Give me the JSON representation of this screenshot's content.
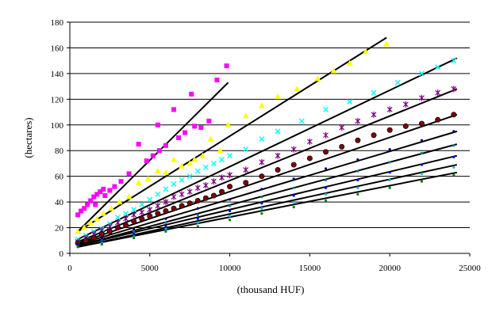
{
  "chart_data": {
    "type": "scatter",
    "title": "",
    "xlabel": "(thousand HUF)",
    "ylabel": "(hectares)",
    "xlim": [
      0,
      25000
    ],
    "ylim": [
      0,
      180
    ],
    "x_ticks": [
      "0",
      "5000",
      "10000",
      "15000",
      "20000",
      "25000"
    ],
    "y_ticks": [
      "0",
      "20",
      "40",
      "60",
      "80",
      "100",
      "120",
      "140",
      "160",
      "180"
    ],
    "grid": "horizontal major gridlines",
    "legend": "none",
    "trend_line_color": "#000000",
    "series": [
      {
        "color": "#ff00ff",
        "marker": "square",
        "points": [
          [
            500,
            30
          ],
          [
            700,
            33
          ],
          [
            900,
            35
          ],
          [
            1100,
            38
          ],
          [
            1300,
            41
          ],
          [
            1500,
            44
          ],
          [
            1700,
            46
          ],
          [
            1900,
            48
          ],
          [
            2100,
            50
          ],
          [
            1600,
            38
          ],
          [
            2200,
            45
          ],
          [
            2500,
            49
          ],
          [
            2800,
            52
          ],
          [
            3200,
            56
          ],
          [
            3700,
            62
          ],
          [
            4300,
            85
          ],
          [
            4800,
            72
          ],
          [
            5200,
            76
          ],
          [
            5600,
            80
          ],
          [
            5500,
            100
          ],
          [
            6000,
            84
          ],
          [
            6500,
            112
          ],
          [
            6800,
            90
          ],
          [
            7200,
            94
          ],
          [
            7600,
            124
          ],
          [
            7800,
            99
          ],
          [
            8200,
            98
          ],
          [
            8700,
            103
          ],
          [
            9200,
            135
          ],
          [
            9800,
            146
          ]
        ],
        "trend": [
          [
            500,
            17
          ],
          [
            9900,
            133
          ]
        ]
      },
      {
        "color": "#ffff00",
        "marker": "triangle",
        "points": [
          [
            500,
            17
          ],
          [
            900,
            20
          ],
          [
            1300,
            24
          ],
          [
            1700,
            27
          ],
          [
            2100,
            31
          ],
          [
            2600,
            35
          ],
          [
            3100,
            40
          ],
          [
            3700,
            44
          ],
          [
            4300,
            55
          ],
          [
            4900,
            58
          ],
          [
            5500,
            64
          ],
          [
            6000,
            63
          ],
          [
            6500,
            73
          ],
          [
            7000,
            68
          ],
          [
            7500,
            70
          ],
          [
            7800,
            73
          ],
          [
            8300,
            76
          ],
          [
            8800,
            89
          ],
          [
            9400,
            80
          ],
          [
            9900,
            100
          ],
          [
            11000,
            107
          ],
          [
            12000,
            115
          ],
          [
            13000,
            122
          ],
          [
            14200,
            128
          ],
          [
            15500,
            136
          ],
          [
            16500,
            142
          ],
          [
            17500,
            148
          ],
          [
            18500,
            157
          ],
          [
            19800,
            163
          ]
        ],
        "trend": [
          [
            500,
            17
          ],
          [
            19800,
            168
          ]
        ]
      },
      {
        "color": "#00ffff",
        "marker": "x",
        "points": [
          [
            500,
            11
          ],
          [
            1000,
            14
          ],
          [
            1500,
            17
          ],
          [
            2000,
            19
          ],
          [
            2500,
            23
          ],
          [
            3000,
            28
          ],
          [
            3500,
            31
          ],
          [
            4000,
            34
          ],
          [
            4500,
            38
          ],
          [
            5000,
            42
          ],
          [
            5500,
            46
          ],
          [
            6000,
            50
          ],
          [
            6500,
            54
          ],
          [
            7000,
            57
          ],
          [
            7500,
            60
          ],
          [
            8000,
            64
          ],
          [
            8500,
            67
          ],
          [
            9000,
            70
          ],
          [
            9500,
            73
          ],
          [
            10000,
            76
          ],
          [
            11000,
            81
          ],
          [
            12000,
            89
          ],
          [
            13000,
            95
          ],
          [
            14500,
            103
          ],
          [
            16000,
            112
          ],
          [
            17500,
            118
          ],
          [
            19000,
            125
          ],
          [
            20500,
            133
          ],
          [
            22000,
            140
          ],
          [
            23000,
            145
          ],
          [
            24000,
            150
          ]
        ],
        "trend": [
          [
            500,
            11
          ],
          [
            24200,
            152
          ]
        ]
      },
      {
        "color": "#800080",
        "marker": "star",
        "points": [
          [
            500,
            9
          ],
          [
            1000,
            12
          ],
          [
            1500,
            15
          ],
          [
            2000,
            18
          ],
          [
            2500,
            21
          ],
          [
            3000,
            24
          ],
          [
            3500,
            27
          ],
          [
            4000,
            30
          ],
          [
            4500,
            32
          ],
          [
            5000,
            34
          ],
          [
            5500,
            37
          ],
          [
            6000,
            40
          ],
          [
            6500,
            44
          ],
          [
            7000,
            46
          ],
          [
            7500,
            48
          ],
          [
            8000,
            51
          ],
          [
            8500,
            53
          ],
          [
            9000,
            56
          ],
          [
            9500,
            59
          ],
          [
            10000,
            61
          ],
          [
            11000,
            65
          ],
          [
            12000,
            71
          ],
          [
            13000,
            76
          ],
          [
            14000,
            81
          ],
          [
            15000,
            87
          ],
          [
            16000,
            92
          ],
          [
            17000,
            98
          ],
          [
            18000,
            103
          ],
          [
            19000,
            108
          ],
          [
            20000,
            112
          ],
          [
            21000,
            116
          ],
          [
            22000,
            121
          ],
          [
            23000,
            125
          ],
          [
            24000,
            128
          ]
        ],
        "trend": [
          [
            500,
            9
          ],
          [
            24200,
            128
          ]
        ]
      },
      {
        "color": "#800000",
        "marker": "circle",
        "points": [
          [
            500,
            8
          ],
          [
            1000,
            10
          ],
          [
            1500,
            12
          ],
          [
            2000,
            15
          ],
          [
            2500,
            17
          ],
          [
            3000,
            20
          ],
          [
            3500,
            22
          ],
          [
            4000,
            25
          ],
          [
            4500,
            27
          ],
          [
            5000,
            29
          ],
          [
            5500,
            31
          ],
          [
            6000,
            33
          ],
          [
            6500,
            35
          ],
          [
            7000,
            37
          ],
          [
            7500,
            39
          ],
          [
            8000,
            41
          ],
          [
            8500,
            43
          ],
          [
            9000,
            45
          ],
          [
            9500,
            48
          ],
          [
            10000,
            52
          ],
          [
            11000,
            55
          ],
          [
            12000,
            60
          ],
          [
            13000,
            65
          ],
          [
            14000,
            69
          ],
          [
            15000,
            74
          ],
          [
            16000,
            79
          ],
          [
            17000,
            83
          ],
          [
            18000,
            88
          ],
          [
            19000,
            92
          ],
          [
            20000,
            96
          ],
          [
            21000,
            99
          ],
          [
            22000,
            101
          ],
          [
            23000,
            104
          ],
          [
            24000,
            108
          ]
        ],
        "trend": [
          [
            500,
            8
          ],
          [
            24200,
            108
          ]
        ]
      },
      {
        "color": "#000080",
        "marker": "dot",
        "points": [
          [
            500,
            7
          ],
          [
            2000,
            12
          ],
          [
            4000,
            19
          ],
          [
            6000,
            27
          ],
          [
            8000,
            35
          ],
          [
            10000,
            42
          ],
          [
            12000,
            50
          ],
          [
            14000,
            58
          ],
          [
            16000,
            66
          ],
          [
            18000,
            73
          ],
          [
            20000,
            81
          ],
          [
            22000,
            88
          ],
          [
            24000,
            95
          ]
        ],
        "trend": [
          [
            500,
            7
          ],
          [
            24200,
            95
          ]
        ]
      },
      {
        "color": "#008080",
        "marker": "dot",
        "points": [
          [
            500,
            6
          ],
          [
            2000,
            10
          ],
          [
            4000,
            17
          ],
          [
            6000,
            24
          ],
          [
            8000,
            30
          ],
          [
            10000,
            37
          ],
          [
            12000,
            44
          ],
          [
            14000,
            51
          ],
          [
            16000,
            57
          ],
          [
            18000,
            64
          ],
          [
            20000,
            71
          ],
          [
            22000,
            78
          ],
          [
            24000,
            84
          ]
        ],
        "trend": [
          [
            500,
            6
          ],
          [
            24200,
            85
          ]
        ]
      },
      {
        "color": "#0000ff",
        "marker": "dot",
        "points": [
          [
            500,
            6
          ],
          [
            2000,
            9
          ],
          [
            4000,
            15
          ],
          [
            6000,
            21
          ],
          [
            8000,
            27
          ],
          [
            10000,
            33
          ],
          [
            12000,
            39
          ],
          [
            14000,
            45
          ],
          [
            16000,
            51
          ],
          [
            18000,
            57
          ],
          [
            20000,
            63
          ],
          [
            22000,
            69
          ],
          [
            24000,
            75
          ]
        ],
        "trend": [
          [
            500,
            6
          ],
          [
            24200,
            76
          ]
        ]
      },
      {
        "color": "#00c0c0",
        "marker": "dot",
        "points": [
          [
            500,
            5
          ],
          [
            2000,
            8
          ],
          [
            4000,
            13
          ],
          [
            6000,
            19
          ],
          [
            8000,
            24
          ],
          [
            10000,
            29
          ],
          [
            12000,
            35
          ],
          [
            14000,
            40
          ],
          [
            16000,
            46
          ],
          [
            18000,
            51
          ],
          [
            20000,
            57
          ],
          [
            22000,
            62
          ],
          [
            24000,
            67
          ]
        ],
        "trend": [
          [
            500,
            5
          ],
          [
            24200,
            69
          ]
        ]
      },
      {
        "color": "#008000",
        "marker": "dot",
        "points": [
          [
            500,
            5
          ],
          [
            2000,
            7
          ],
          [
            4000,
            12
          ],
          [
            6000,
            17
          ],
          [
            8000,
            21
          ],
          [
            10000,
            26
          ],
          [
            12000,
            31
          ],
          [
            14000,
            36
          ],
          [
            16000,
            41
          ],
          [
            18000,
            46
          ],
          [
            20000,
            51
          ],
          [
            22000,
            56
          ],
          [
            24000,
            61
          ]
        ],
        "trend": [
          [
            500,
            5
          ],
          [
            24200,
            63
          ]
        ]
      }
    ]
  }
}
